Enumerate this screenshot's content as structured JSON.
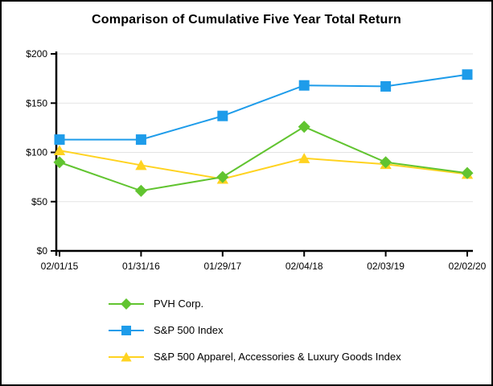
{
  "chart_data": {
    "type": "line",
    "title": "Comparison of Cumulative Five Year Total Return",
    "categories": [
      "02/01/15",
      "01/31/16",
      "01/29/17",
      "02/04/18",
      "02/03/19",
      "02/02/20"
    ],
    "series": [
      {
        "name": "PVH Corp.",
        "marker": "diamond",
        "color": "#61C430",
        "values": [
          90,
          61,
          75,
          126,
          90,
          79
        ]
      },
      {
        "name": "S&P 500 Index",
        "marker": "square",
        "color": "#1E9CEA",
        "values": [
          113,
          113,
          137,
          168,
          167,
          179
        ]
      },
      {
        "name": "S&P 500 Apparel, Accessories & Luxury Goods Index",
        "marker": "triangle",
        "color": "#FFD320",
        "values": [
          102,
          87,
          73,
          94,
          88,
          78
        ]
      }
    ],
    "y_ticks": [
      0,
      50,
      100,
      150,
      200
    ],
    "y_tick_prefix": "$",
    "ylim": [
      0,
      200
    ],
    "grid": true,
    "grid_color": "#E3E3E3",
    "axis_color": "#000000",
    "legend_position": "bottom-left"
  }
}
